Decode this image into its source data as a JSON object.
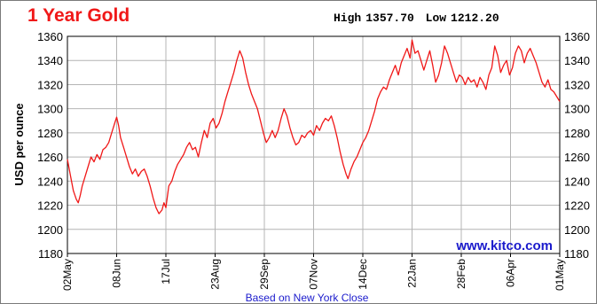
{
  "chart_data": {
    "type": "line",
    "title": "1 Year Gold",
    "stats": {
      "high_label": "High",
      "high_value": "1357.70",
      "low_label": "Low",
      "low_value": "1212.20"
    },
    "xlabel": "Based on New York Close",
    "ylabel": "USD per ounce",
    "watermark": "www.kitco.com",
    "ylim": [
      1180,
      1360
    ],
    "yticks": [
      1180,
      1200,
      1220,
      1240,
      1260,
      1280,
      1300,
      1320,
      1340,
      1360
    ],
    "x_start": "02May",
    "x_end": "01May",
    "xtick_labels": [
      "02May",
      "08Jun",
      "17Jul",
      "23Aug",
      "29Sep",
      "07Nov",
      "14Dec",
      "22Jan",
      "28Feb",
      "06Apr",
      "01May"
    ],
    "xtick_positions": [
      0,
      0.1,
      0.2,
      0.3,
      0.4,
      0.5,
      0.6,
      0.7,
      0.8,
      0.9,
      1.0
    ],
    "grid": true,
    "series": [
      {
        "color": "#f01818",
        "points": [
          [
            0.0,
            1258
          ],
          [
            0.006,
            1245
          ],
          [
            0.012,
            1232
          ],
          [
            0.018,
            1225
          ],
          [
            0.022,
            1222
          ],
          [
            0.026,
            1228
          ],
          [
            0.03,
            1236
          ],
          [
            0.036,
            1244
          ],
          [
            0.042,
            1252
          ],
          [
            0.048,
            1260
          ],
          [
            0.054,
            1256
          ],
          [
            0.06,
            1262
          ],
          [
            0.066,
            1258
          ],
          [
            0.072,
            1266
          ],
          [
            0.078,
            1268
          ],
          [
            0.084,
            1272
          ],
          [
            0.09,
            1280
          ],
          [
            0.096,
            1288
          ],
          [
            0.1,
            1293
          ],
          [
            0.104,
            1286
          ],
          [
            0.108,
            1276
          ],
          [
            0.114,
            1268
          ],
          [
            0.12,
            1260
          ],
          [
            0.126,
            1252
          ],
          [
            0.132,
            1246
          ],
          [
            0.138,
            1250
          ],
          [
            0.144,
            1244
          ],
          [
            0.15,
            1248
          ],
          [
            0.156,
            1250
          ],
          [
            0.162,
            1244
          ],
          [
            0.168,
            1236
          ],
          [
            0.174,
            1226
          ],
          [
            0.18,
            1218
          ],
          [
            0.186,
            1213
          ],
          [
            0.192,
            1216
          ],
          [
            0.196,
            1222
          ],
          [
            0.2,
            1218
          ],
          [
            0.206,
            1236
          ],
          [
            0.212,
            1240
          ],
          [
            0.218,
            1248
          ],
          [
            0.224,
            1254
          ],
          [
            0.23,
            1258
          ],
          [
            0.236,
            1262
          ],
          [
            0.242,
            1268
          ],
          [
            0.248,
            1272
          ],
          [
            0.254,
            1266
          ],
          [
            0.26,
            1268
          ],
          [
            0.266,
            1260
          ],
          [
            0.272,
            1272
          ],
          [
            0.278,
            1282
          ],
          [
            0.284,
            1276
          ],
          [
            0.29,
            1288
          ],
          [
            0.296,
            1292
          ],
          [
            0.302,
            1284
          ],
          [
            0.308,
            1288
          ],
          [
            0.314,
            1296
          ],
          [
            0.32,
            1306
          ],
          [
            0.326,
            1314
          ],
          [
            0.332,
            1322
          ],
          [
            0.338,
            1330
          ],
          [
            0.344,
            1340
          ],
          [
            0.35,
            1348
          ],
          [
            0.356,
            1342
          ],
          [
            0.362,
            1330
          ],
          [
            0.368,
            1320
          ],
          [
            0.374,
            1312
          ],
          [
            0.38,
            1306
          ],
          [
            0.386,
            1300
          ],
          [
            0.392,
            1290
          ],
          [
            0.398,
            1280
          ],
          [
            0.404,
            1272
          ],
          [
            0.41,
            1276
          ],
          [
            0.416,
            1282
          ],
          [
            0.422,
            1276
          ],
          [
            0.428,
            1282
          ],
          [
            0.434,
            1292
          ],
          [
            0.44,
            1300
          ],
          [
            0.446,
            1294
          ],
          [
            0.452,
            1284
          ],
          [
            0.458,
            1276
          ],
          [
            0.464,
            1270
          ],
          [
            0.47,
            1272
          ],
          [
            0.476,
            1278
          ],
          [
            0.482,
            1276
          ],
          [
            0.488,
            1280
          ],
          [
            0.494,
            1282
          ],
          [
            0.5,
            1278
          ],
          [
            0.506,
            1286
          ],
          [
            0.512,
            1282
          ],
          [
            0.518,
            1288
          ],
          [
            0.524,
            1292
          ],
          [
            0.53,
            1290
          ],
          [
            0.536,
            1294
          ],
          [
            0.542,
            1286
          ],
          [
            0.548,
            1276
          ],
          [
            0.554,
            1264
          ],
          [
            0.56,
            1254
          ],
          [
            0.566,
            1246
          ],
          [
            0.57,
            1242
          ],
          [
            0.576,
            1250
          ],
          [
            0.582,
            1256
          ],
          [
            0.588,
            1260
          ],
          [
            0.594,
            1266
          ],
          [
            0.6,
            1272
          ],
          [
            0.606,
            1276
          ],
          [
            0.612,
            1282
          ],
          [
            0.618,
            1290
          ],
          [
            0.624,
            1298
          ],
          [
            0.63,
            1308
          ],
          [
            0.636,
            1314
          ],
          [
            0.642,
            1318
          ],
          [
            0.648,
            1316
          ],
          [
            0.654,
            1324
          ],
          [
            0.66,
            1330
          ],
          [
            0.666,
            1336
          ],
          [
            0.672,
            1328
          ],
          [
            0.678,
            1338
          ],
          [
            0.684,
            1344
          ],
          [
            0.69,
            1350
          ],
          [
            0.696,
            1342
          ],
          [
            0.7,
            1357
          ],
          [
            0.706,
            1346
          ],
          [
            0.712,
            1348
          ],
          [
            0.718,
            1340
          ],
          [
            0.724,
            1332
          ],
          [
            0.73,
            1340
          ],
          [
            0.736,
            1348
          ],
          [
            0.742,
            1336
          ],
          [
            0.748,
            1322
          ],
          [
            0.754,
            1328
          ],
          [
            0.76,
            1338
          ],
          [
            0.766,
            1352
          ],
          [
            0.772,
            1346
          ],
          [
            0.778,
            1338
          ],
          [
            0.784,
            1330
          ],
          [
            0.79,
            1322
          ],
          [
            0.796,
            1328
          ],
          [
            0.802,
            1326
          ],
          [
            0.808,
            1320
          ],
          [
            0.814,
            1326
          ],
          [
            0.82,
            1322
          ],
          [
            0.826,
            1324
          ],
          [
            0.832,
            1318
          ],
          [
            0.838,
            1326
          ],
          [
            0.844,
            1322
          ],
          [
            0.85,
            1316
          ],
          [
            0.856,
            1328
          ],
          [
            0.862,
            1334
          ],
          [
            0.868,
            1352
          ],
          [
            0.874,
            1344
          ],
          [
            0.88,
            1330
          ],
          [
            0.886,
            1336
          ],
          [
            0.892,
            1340
          ],
          [
            0.898,
            1328
          ],
          [
            0.904,
            1334
          ],
          [
            0.91,
            1346
          ],
          [
            0.916,
            1352
          ],
          [
            0.922,
            1348
          ],
          [
            0.928,
            1338
          ],
          [
            0.934,
            1346
          ],
          [
            0.94,
            1350
          ],
          [
            0.946,
            1344
          ],
          [
            0.952,
            1338
          ],
          [
            0.958,
            1330
          ],
          [
            0.964,
            1322
          ],
          [
            0.97,
            1318
          ],
          [
            0.976,
            1324
          ],
          [
            0.982,
            1316
          ],
          [
            0.988,
            1314
          ],
          [
            0.994,
            1310
          ],
          [
            1.0,
            1306
          ]
        ]
      }
    ]
  },
  "colors": {
    "line": "#f01818",
    "title": "#f01818",
    "watermark": "#1a1acc",
    "footer": "#1a1acc",
    "grid": "#b4b4b4",
    "axis": "#000000"
  }
}
